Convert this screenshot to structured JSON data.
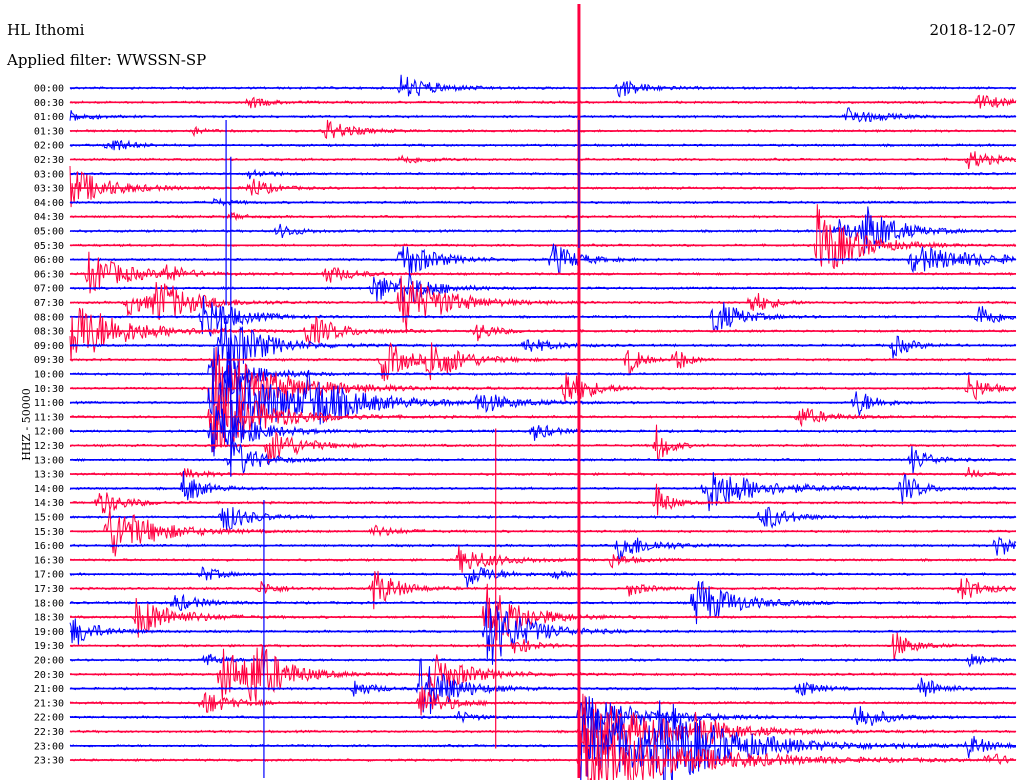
{
  "header": {
    "station": "HL Ithomi",
    "date": "2018-12-07",
    "filter_label": "Applied filter: WWSSN-SP"
  },
  "chart_data": {
    "type": "line",
    "title": "HL Ithomi",
    "date": "2018-12-07",
    "filter": "WWSSN-SP",
    "ylabel": "HHZ - 50000",
    "colors": {
      "even_trace": "#0000ff",
      "odd_trace": "#ff0040"
    },
    "traces": [
      {
        "label": "00:00",
        "events": [
          [
            0.35,
            0.5,
            14
          ],
          [
            0.58,
            0.4,
            10
          ]
        ]
      },
      {
        "label": "00:30",
        "events": [
          [
            0.19,
            0.3,
            6
          ],
          [
            0.96,
            0.5,
            8
          ]
        ]
      },
      {
        "label": "01:00",
        "events": [
          [
            0.0,
            0.3,
            6
          ],
          [
            0.82,
            0.5,
            10
          ]
        ]
      },
      {
        "label": "01:30",
        "events": [
          [
            0.27,
            0.4,
            12
          ],
          [
            0.13,
            0.2,
            4
          ]
        ]
      },
      {
        "label": "02:00",
        "events": [
          [
            0.04,
            0.3,
            10
          ]
        ]
      },
      {
        "label": "02:30",
        "events": [
          [
            0.35,
            0.4,
            5
          ],
          [
            0.95,
            0.4,
            10
          ]
        ]
      },
      {
        "label": "03:00",
        "events": [
          [
            0.19,
            0.3,
            5
          ]
        ]
      },
      {
        "label": "03:30",
        "events": [
          [
            0.0,
            0.6,
            22
          ],
          [
            0.19,
            0.3,
            12
          ]
        ]
      },
      {
        "label": "04:00",
        "events": [
          [
            0.15,
            0.3,
            4
          ]
        ]
      },
      {
        "label": "04:30",
        "events": [
          [
            0.17,
            0.2,
            4
          ]
        ]
      },
      {
        "label": "05:00",
        "events": [
          [
            0.22,
            0.3,
            8
          ],
          [
            0.81,
            0.4,
            14
          ],
          [
            0.84,
            0.5,
            26
          ]
        ]
      },
      {
        "label": "05:30",
        "events": [
          [
            0.79,
            0.6,
            40
          ]
        ]
      },
      {
        "label": "06:00",
        "events": [
          [
            0.35,
            0.5,
            22
          ],
          [
            0.51,
            0.4,
            18
          ],
          [
            0.89,
            1.2,
            14
          ]
        ]
      },
      {
        "label": "06:30",
        "events": [
          [
            0.02,
            0.6,
            22
          ],
          [
            0.1,
            0.3,
            10
          ],
          [
            0.27,
            0.4,
            10
          ]
        ]
      },
      {
        "label": "07:00",
        "events": [
          [
            0.32,
            0.4,
            18
          ],
          [
            0.35,
            0.5,
            16
          ]
        ]
      },
      {
        "label": "07:30",
        "events": [
          [
            0.06,
            0.4,
            14
          ],
          [
            0.09,
            0.6,
            24
          ],
          [
            0.35,
            0.7,
            32
          ],
          [
            0.72,
            0.3,
            14
          ]
        ]
      },
      {
        "label": "08:00",
        "events": [
          [
            0.14,
            0.5,
            26
          ],
          [
            0.68,
            0.4,
            22
          ],
          [
            0.96,
            0.3,
            16
          ]
        ]
      },
      {
        "label": "08:30",
        "events": [
          [
            0.0,
            0.8,
            36
          ],
          [
            0.25,
            0.5,
            18
          ],
          [
            0.43,
            0.3,
            10
          ]
        ]
      },
      {
        "label": "09:00",
        "events": [
          [
            0.16,
            0.6,
            38
          ],
          [
            0.48,
            0.4,
            10
          ],
          [
            0.87,
            0.3,
            12
          ]
        ]
      },
      {
        "label": "09:30",
        "events": [
          [
            0.33,
            0.4,
            24
          ],
          [
            0.38,
            0.5,
            24
          ],
          [
            0.59,
            0.2,
            18
          ],
          [
            0.64,
            0.2,
            14
          ]
        ]
      },
      {
        "label": "10:00",
        "events": [
          [
            0.15,
            0.5,
            40
          ]
        ]
      },
      {
        "label": "10:30",
        "events": [
          [
            0.15,
            1.0,
            46
          ],
          [
            0.52,
            0.4,
            24
          ],
          [
            0.95,
            0.3,
            16
          ]
        ]
      },
      {
        "label": "11:00",
        "events": [
          [
            0.15,
            1.2,
            50
          ],
          [
            0.25,
            0.6,
            22
          ],
          [
            0.43,
            0.5,
            12
          ],
          [
            0.83,
            0.3,
            16
          ]
        ]
      },
      {
        "label": "11:30",
        "events": [
          [
            0.15,
            0.8,
            40
          ],
          [
            0.77,
            0.4,
            12
          ]
        ]
      },
      {
        "label": "12:00",
        "events": [
          [
            0.15,
            0.6,
            30
          ],
          [
            0.49,
            0.3,
            10
          ]
        ]
      },
      {
        "label": "12:30",
        "events": [
          [
            0.21,
            0.5,
            20
          ],
          [
            0.62,
            0.2,
            22
          ]
        ]
      },
      {
        "label": "13:00",
        "events": [
          [
            0.17,
            0.4,
            24
          ],
          [
            0.89,
            0.3,
            14
          ]
        ]
      },
      {
        "label": "13:30",
        "events": [
          [
            0.12,
            0.3,
            6
          ],
          [
            0.95,
            0.2,
            6
          ]
        ]
      },
      {
        "label": "14:00",
        "events": [
          [
            0.12,
            0.3,
            18
          ],
          [
            0.67,
            0.8,
            26
          ],
          [
            0.88,
            0.3,
            16
          ]
        ]
      },
      {
        "label": "14:30",
        "events": [
          [
            0.03,
            0.4,
            14
          ],
          [
            0.62,
            0.2,
            20
          ]
        ]
      },
      {
        "label": "15:00",
        "events": [
          [
            0.16,
            0.4,
            18
          ],
          [
            0.73,
            0.4,
            16
          ]
        ]
      },
      {
        "label": "15:30",
        "events": [
          [
            0.04,
            0.7,
            30
          ],
          [
            0.32,
            0.4,
            6
          ]
        ]
      },
      {
        "label": "16:00",
        "events": [
          [
            0.58,
            0.5,
            16
          ],
          [
            0.98,
            0.3,
            14
          ]
        ]
      },
      {
        "label": "16:30",
        "events": [
          [
            0.41,
            0.6,
            14
          ],
          [
            0.57,
            0.3,
            8
          ]
        ]
      },
      {
        "label": "17:00",
        "events": [
          [
            0.14,
            0.3,
            8
          ],
          [
            0.42,
            0.4,
            14
          ],
          [
            0.51,
            0.2,
            6
          ]
        ]
      },
      {
        "label": "17:30",
        "events": [
          [
            0.2,
            0.3,
            8
          ],
          [
            0.32,
            0.4,
            22
          ],
          [
            0.59,
            0.3,
            8
          ],
          [
            0.94,
            0.4,
            14
          ]
        ]
      },
      {
        "label": "18:00",
        "events": [
          [
            0.11,
            0.4,
            10
          ],
          [
            0.66,
            0.6,
            28
          ]
        ]
      },
      {
        "label": "18:30",
        "events": [
          [
            0.07,
            0.6,
            22
          ],
          [
            0.44,
            0.6,
            34
          ]
        ]
      },
      {
        "label": "19:00",
        "events": [
          [
            0.0,
            0.4,
            18
          ],
          [
            0.44,
            0.6,
            40
          ]
        ]
      },
      {
        "label": "19:30",
        "events": [
          [
            0.47,
            0.3,
            10
          ],
          [
            0.87,
            0.3,
            16
          ]
        ]
      },
      {
        "label": "20:00",
        "events": [
          [
            0.14,
            0.3,
            8
          ],
          [
            0.95,
            0.3,
            6
          ]
        ]
      },
      {
        "label": "20:30",
        "events": [
          [
            0.16,
            0.5,
            30
          ],
          [
            0.19,
            0.5,
            34
          ],
          [
            0.38,
            0.6,
            24
          ]
        ]
      },
      {
        "label": "21:00",
        "events": [
          [
            0.3,
            0.3,
            10
          ],
          [
            0.37,
            0.5,
            36
          ],
          [
            0.77,
            0.3,
            10
          ],
          [
            0.9,
            0.3,
            14
          ]
        ]
      },
      {
        "label": "21:30",
        "events": [
          [
            0.14,
            0.4,
            14
          ],
          [
            0.37,
            0.4,
            20
          ]
        ]
      },
      {
        "label": "22:00",
        "events": [
          [
            0.41,
            0.3,
            6
          ],
          [
            0.54,
            1.0,
            24
          ],
          [
            0.83,
            0.4,
            16
          ]
        ]
      },
      {
        "label": "22:30",
        "events": [
          [
            0.54,
            1.2,
            40
          ],
          [
            0.66,
            0.4,
            14
          ]
        ]
      },
      {
        "label": "23:00",
        "events": [
          [
            0.54,
            1.6,
            44
          ],
          [
            0.62,
            0.8,
            36
          ],
          [
            0.95,
            0.3,
            12
          ]
        ]
      },
      {
        "label": "23:30",
        "events": [
          [
            0.54,
            1.6,
            40
          ],
          [
            0.97,
            0.3,
            8
          ]
        ]
      }
    ],
    "spikes": [
      {
        "trace": 0,
        "x": 0.538
      },
      {
        "trace": 4,
        "x": 0.165
      },
      {
        "trace": 16,
        "x": 0.17
      },
      {
        "trace": 35,
        "x": 0.45
      },
      {
        "trace": 40,
        "x": 0.205
      }
    ]
  }
}
